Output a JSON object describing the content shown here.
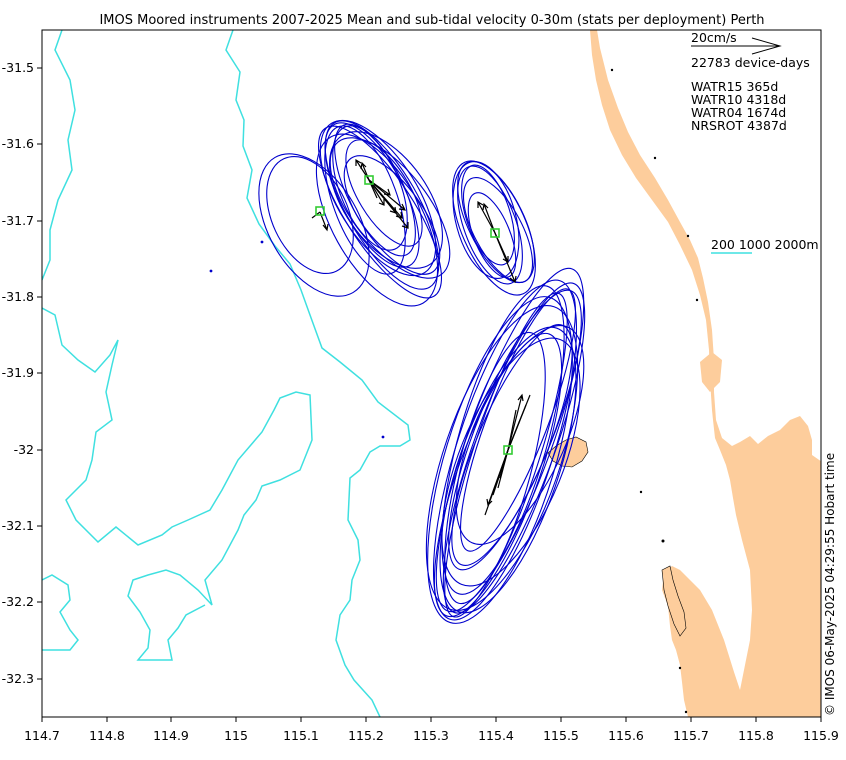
{
  "title": "IMOS Moored instruments 2007-2025 Mean and sub-tidal velocity 0-30m (stats per deployment) Perth",
  "credit": "© IMOS 06-May-2025 04:29:55 Hobart time",
  "x_ticks": [
    "114.7",
    "114.8",
    "114.9",
    "115",
    "115.1",
    "115.2",
    "115.3",
    "115.4",
    "115.5",
    "115.6",
    "115.7",
    "115.8",
    "115.9"
  ],
  "y_ticks": [
    "-31.5",
    "-31.6",
    "-31.7",
    "-31.8",
    "-31.9",
    "-32",
    "-32.1",
    "-32.2",
    "-32.3"
  ],
  "legend": {
    "scale_label": "20cm/s",
    "device_days": "22783 device-days",
    "moorings": [
      "WATR15 365d",
      "WATR10 4318d",
      "WATR04 1674d",
      "NRSROT 4387d"
    ],
    "isobaths": "200 1000 2000m"
  },
  "colors": {
    "land": "#fdcd9c",
    "isobath": "#3fe0e0",
    "ellipse": "#0000cc",
    "arrow": "#000000",
    "station": "#33cc33"
  },
  "chart_data": {
    "type": "map",
    "xlim": [
      114.7,
      115.9
    ],
    "ylim": [
      -32.35,
      -31.45
    ],
    "stations": [
      {
        "name": "WATR15",
        "lon": 115.13,
        "lat": -31.69
      },
      {
        "name": "WATR10",
        "lon": 115.205,
        "lat": -31.647
      },
      {
        "name": "WATR04",
        "lon": 115.4,
        "lat": -31.717
      },
      {
        "name": "NRSROT",
        "lon": 115.415,
        "lat": -32.0
      }
    ]
  }
}
